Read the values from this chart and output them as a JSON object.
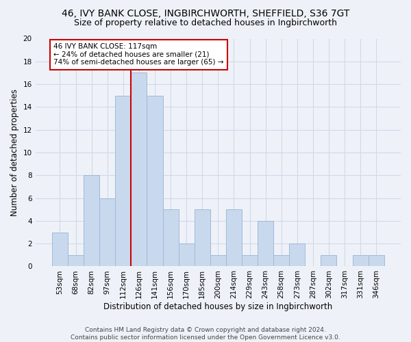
{
  "title": "46, IVY BANK CLOSE, INGBIRCHWORTH, SHEFFIELD, S36 7GT",
  "subtitle": "Size of property relative to detached houses in Ingbirchworth",
  "xlabel": "Distribution of detached houses by size in Ingbirchworth",
  "ylabel": "Number of detached properties",
  "bar_labels": [
    "53sqm",
    "68sqm",
    "82sqm",
    "97sqm",
    "112sqm",
    "126sqm",
    "141sqm",
    "156sqm",
    "170sqm",
    "185sqm",
    "200sqm",
    "214sqm",
    "229sqm",
    "243sqm",
    "258sqm",
    "273sqm",
    "287sqm",
    "302sqm",
    "317sqm",
    "331sqm",
    "346sqm"
  ],
  "bar_values": [
    3,
    1,
    8,
    6,
    15,
    17,
    15,
    5,
    2,
    5,
    1,
    5,
    1,
    4,
    1,
    2,
    0,
    1,
    0,
    1,
    1
  ],
  "bar_color": "#c9d9ed",
  "bar_edgecolor": "#a0b8d8",
  "grid_color": "#d0d8e8",
  "background_color": "#eef2f8",
  "vline_x_index": 4.5,
  "vline_color": "#cc0000",
  "annotation_line1": "46 IVY BANK CLOSE: 117sqm",
  "annotation_line2": "← 24% of detached houses are smaller (21)",
  "annotation_line3": "74% of semi-detached houses are larger (65) →",
  "annotation_box_color": "#ffffff",
  "annotation_box_edgecolor": "#cc0000",
  "ylim": [
    0,
    20
  ],
  "yticks": [
    0,
    2,
    4,
    6,
    8,
    10,
    12,
    14,
    16,
    18,
    20
  ],
  "footer": "Contains HM Land Registry data © Crown copyright and database right 2024.\nContains public sector information licensed under the Open Government Licence v3.0.",
  "title_fontsize": 10,
  "subtitle_fontsize": 9,
  "xlabel_fontsize": 8.5,
  "ylabel_fontsize": 8.5,
  "tick_fontsize": 7.5,
  "annotation_fontsize": 7.5,
  "footer_fontsize": 6.5
}
